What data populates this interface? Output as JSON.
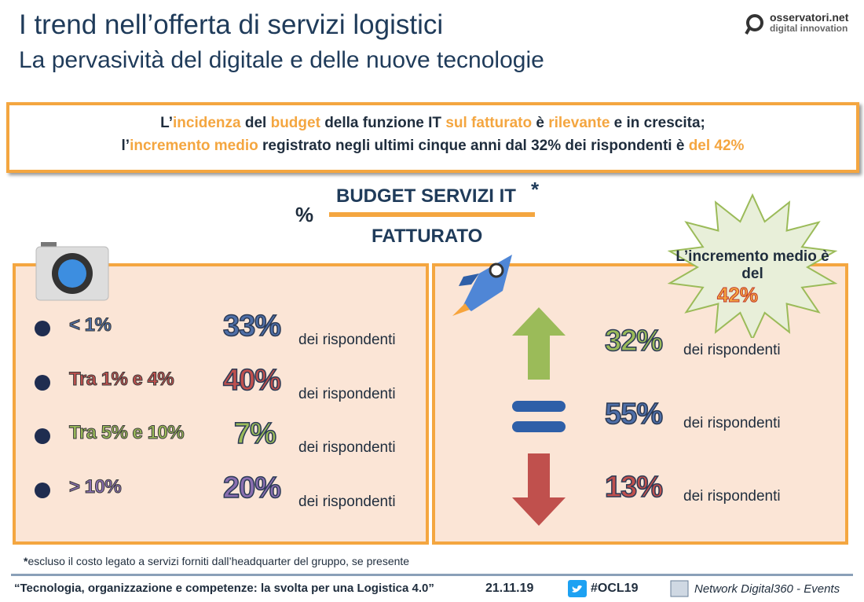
{
  "header": {
    "title": "I trend nell’offerta di servizi logistici",
    "subtitle": "La pervasività del digitale e delle nuove tecnologie"
  },
  "logo": {
    "name": "osservatori.net",
    "tagline": "digital innovation"
  },
  "highlight": {
    "lines": [
      [
        {
          "text": "L’",
          "accent": false
        },
        {
          "text": "incidenza",
          "accent": true
        },
        {
          "text": " del ",
          "accent": false
        },
        {
          "text": "budget",
          "accent": true
        },
        {
          "text": " della funzione IT ",
          "accent": false
        },
        {
          "text": "sul fatturato",
          "accent": true
        },
        {
          "text": " è ",
          "accent": false
        },
        {
          "text": "rilevante",
          "accent": true
        },
        {
          "text": " e in crescita;",
          "accent": false
        }
      ],
      [
        {
          "text": "l’",
          "accent": false
        },
        {
          "text": "incremento medio",
          "accent": true
        },
        {
          "text": " registrato negli ultimi cinque anni dal 32% dei rispondenti è ",
          "accent": false
        },
        {
          "text": "del 42%",
          "accent": true
        }
      ]
    ]
  },
  "formula": {
    "symbol": "%",
    "numerator": "BUDGET SERVIZI IT",
    "asterisk": "*",
    "denominator": "FATTURATO"
  },
  "left_panel": {
    "rows": [
      {
        "label": "< 1%",
        "value": "33%",
        "suffix": "dei rispondenti",
        "color": "#4f6fa8"
      },
      {
        "label": "Tra 1% e 4%",
        "value": "40%",
        "suffix": "dei rispondenti",
        "color": "#c0504d"
      },
      {
        "label": "Tra 5% e 10%",
        "value": "7%",
        "suffix": "dei rispondenti",
        "color": "#9bbb59"
      },
      {
        "label": "> 10%",
        "value": "20%",
        "suffix": "dei rispondenti",
        "color": "#8a6fb0"
      }
    ]
  },
  "right_panel": {
    "rows": [
      {
        "value": "32%",
        "suffix": "dei rispondenti",
        "color": "#9bbb59",
        "icon": "up"
      },
      {
        "value": "55%",
        "suffix": "dei rispondenti",
        "color": "#4f6fa8",
        "icon": "equal"
      },
      {
        "value": "13%",
        "suffix": "dei rispondenti",
        "color": "#c0504d",
        "icon": "down"
      }
    ]
  },
  "burst": {
    "text": "L’incremento medio è del",
    "value": "42%"
  },
  "footnote": {
    "mark": "*",
    "text": "escluso il costo legato a servizi forniti dall’headquarter del gruppo, se presente"
  },
  "footer": {
    "quote": "“Tecnologia, organizzazione e competenze: la svolta per una Logistica 4.0”",
    "date": "21.11.19",
    "hashtag": "#OCL19",
    "network": "Network Digital360 - Events"
  }
}
